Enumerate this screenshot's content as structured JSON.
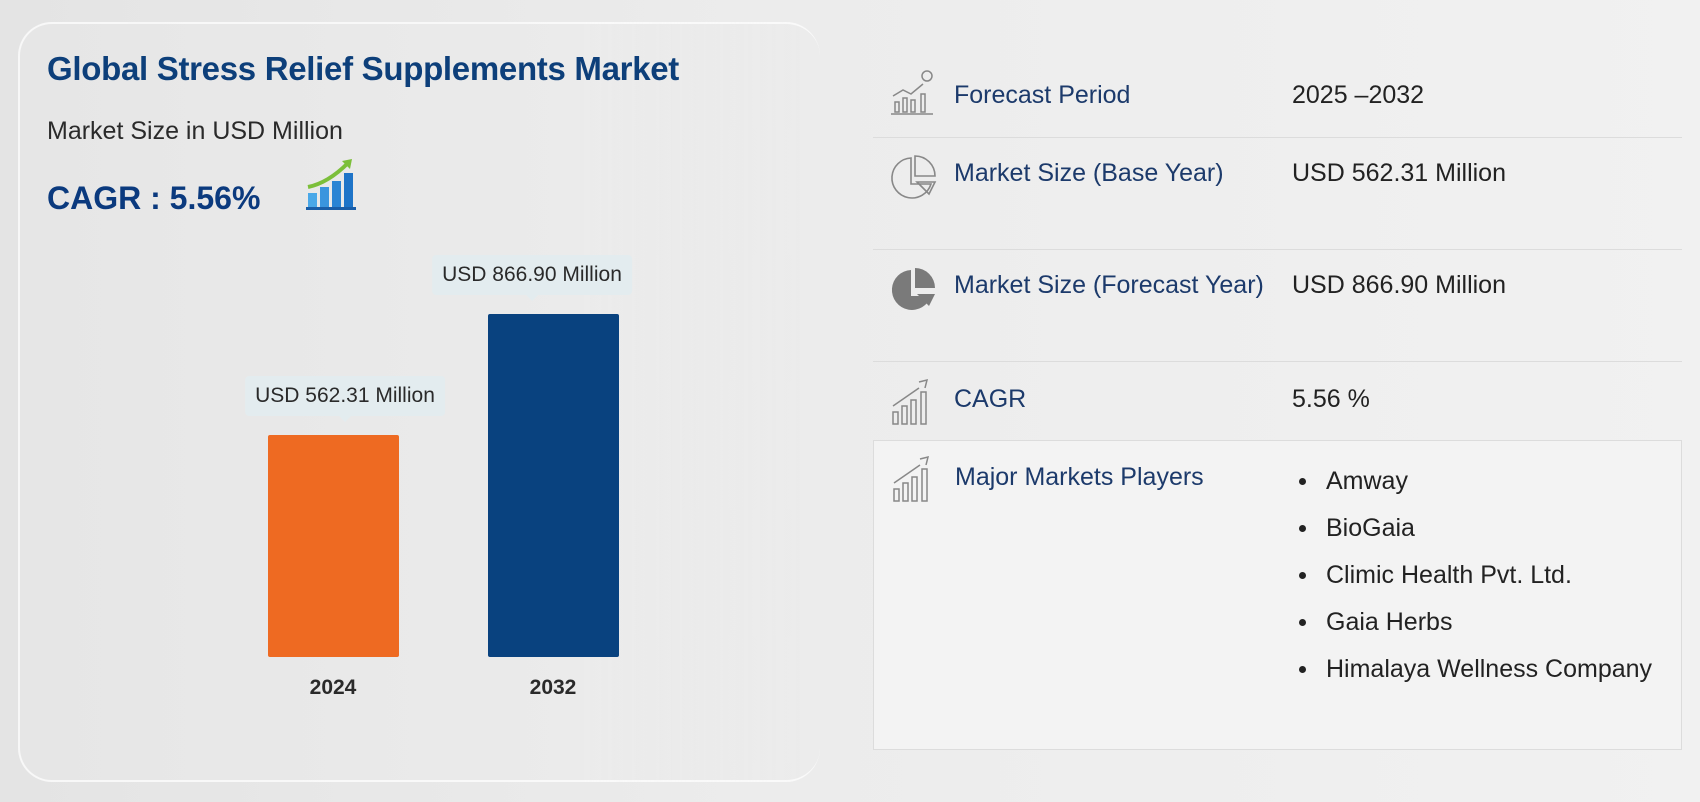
{
  "header": {
    "title": "Global Stress Relief Supplements Market",
    "subtitle": "Market Size in USD Million",
    "cagr_label": "CAGR : 5.56%",
    "cagr_icon": "growth-chart-icon"
  },
  "chart_data": {
    "type": "bar",
    "categories": [
      "2024",
      "2032"
    ],
    "values": [
      562.31,
      866.9
    ],
    "data_labels": [
      "USD 562.31 Million",
      "USD 866.90 Million"
    ],
    "colors": [
      "#ee6a22",
      "#09427f"
    ],
    "title": "Global Stress Relief Supplements Market",
    "ylabel": "Market Size in USD Million",
    "grid": false
  },
  "table": {
    "rows": [
      {
        "icon": "forecast-chart-icon",
        "label": "Forecast Period",
        "value": "2025 –2032"
      },
      {
        "icon": "pie-outline-icon",
        "label": "Market Size (Base Year)",
        "value": "USD 562.31 Million"
      },
      {
        "icon": "pie-filled-icon",
        "label": "Market Size (Forecast Year)",
        "value": "USD 866.90 Million"
      },
      {
        "icon": "growth-bars-icon",
        "label": "CAGR",
        "value": "5.56 %"
      },
      {
        "icon": "growth-bars-icon",
        "label": "Major Markets Players"
      }
    ],
    "players": [
      "Amway",
      "BioGaia",
      "Climic Health Pvt. Ltd.",
      "Gaia Herbs",
      "Himalaya Wellness Company"
    ]
  }
}
